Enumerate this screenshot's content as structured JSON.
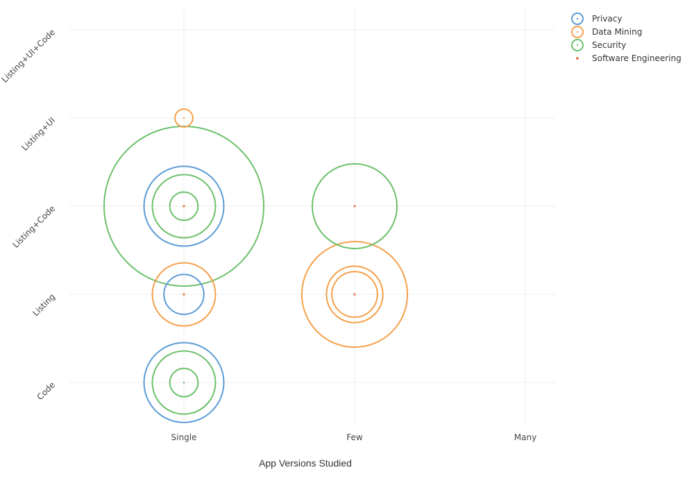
{
  "chart_data": {
    "type": "scatter",
    "subtype": "bubble",
    "title": "",
    "xlabel": "App Versions Studied",
    "ylabel": "",
    "x_categories": [
      "Single",
      "Few",
      "Many"
    ],
    "y_categories": [
      "Code",
      "Listing",
      "Listing+Code",
      "Listing+UI",
      "Listing+UI+Code"
    ],
    "grid": true,
    "legend_placement": "top-right",
    "series": [
      {
        "name": "Privacy",
        "color": "#5b9bd5",
        "marker": "open-circle",
        "points": [
          {
            "x": "Single",
            "y": "Listing+Code",
            "size": 4
          },
          {
            "x": "Single",
            "y": "Listing",
            "size": 1
          },
          {
            "x": "Single",
            "y": "Code",
            "size": 4
          }
        ]
      },
      {
        "name": "Data Mining",
        "color": "#f5a04a",
        "marker": "open-circle",
        "points": [
          {
            "x": "Single",
            "y": "Listing+UI",
            "size": 0.2
          },
          {
            "x": "Single",
            "y": "Listing",
            "size": 2.5
          },
          {
            "x": "Few",
            "y": "Listing",
            "size": 7
          },
          {
            "x": "Few",
            "y": "Listing",
            "size": 2
          },
          {
            "x": "Few",
            "y": "Listing",
            "size": 1.3
          }
        ]
      },
      {
        "name": "Security",
        "color": "#6cc06a",
        "marker": "open-circle",
        "points": [
          {
            "x": "Single",
            "y": "Listing+Code",
            "size": 16
          },
          {
            "x": "Single",
            "y": "Listing+Code",
            "size": 2.5
          },
          {
            "x": "Single",
            "y": "Listing+Code",
            "size": 0.5
          },
          {
            "x": "Few",
            "y": "Listing+Code",
            "size": 4.5
          },
          {
            "x": "Single",
            "y": "Code",
            "size": 2.5
          },
          {
            "x": "Single",
            "y": "Code",
            "size": 0.5
          }
        ]
      },
      {
        "name": "Software Engineering",
        "color": "#e07a54",
        "marker": "dot",
        "points": [
          {
            "x": "Single",
            "y": "Listing+Code",
            "size": 0.2
          },
          {
            "x": "Single",
            "y": "Listing",
            "size": 0.2
          },
          {
            "x": "Few",
            "y": "Listing+Code",
            "size": 0.2
          },
          {
            "x": "Few",
            "y": "Listing",
            "size": 0.2
          }
        ]
      }
    ]
  }
}
